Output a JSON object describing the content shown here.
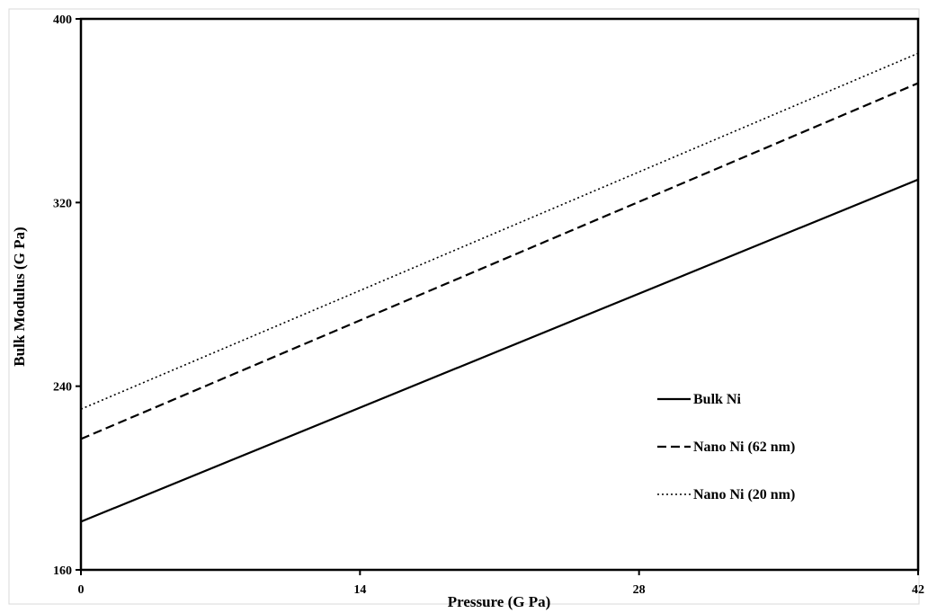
{
  "chart_data": {
    "type": "line",
    "title": "",
    "xlabel": "Pressure (G Pa)",
    "ylabel": "Bulk Modulus (G Pa)",
    "xlim": [
      0,
      42
    ],
    "ylim": [
      160,
      400
    ],
    "xticks": [
      0,
      14,
      28,
      42
    ],
    "yticks": [
      160,
      240,
      320,
      400
    ],
    "grid": false,
    "legend_position": "bottom-right",
    "series": [
      {
        "name": "Bulk Ni",
        "style": "solid",
        "color": "#000000",
        "x": [
          0,
          42
        ],
        "y": [
          181,
          330
        ]
      },
      {
        "name": "Nano Ni (62 nm)",
        "style": "dashed",
        "color": "#000000",
        "x": [
          0,
          42
        ],
        "y": [
          217,
          372
        ]
      },
      {
        "name": "Nano Ni (20 nm)",
        "style": "dotted",
        "color": "#000000",
        "x": [
          0,
          42
        ],
        "y": [
          230,
          385
        ]
      }
    ]
  }
}
